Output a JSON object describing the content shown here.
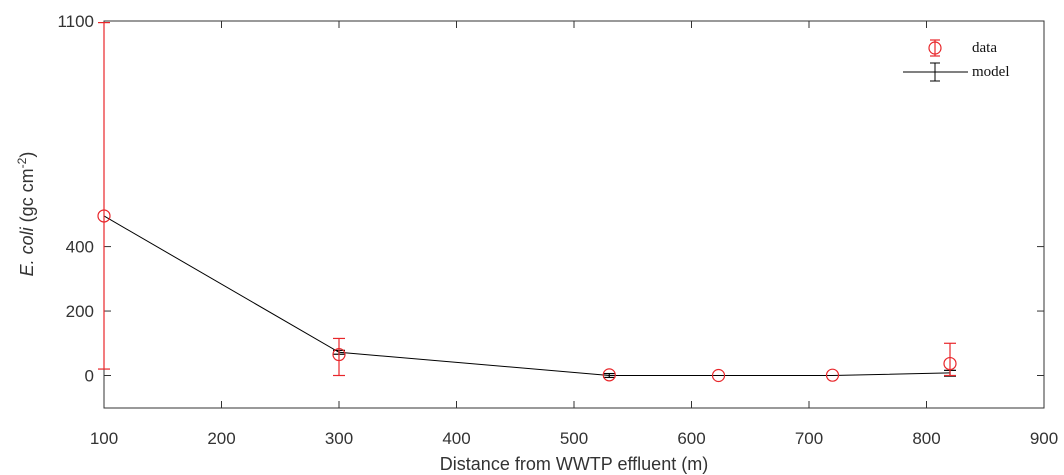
{
  "chart_data": {
    "type": "line",
    "xlabel": "Distance from WWTP effluent (m)",
    "ylabel_italic": "E. coli",
    "ylabel_rest": " (gc cm",
    "ylabel_sup": "-2",
    "ylabel_close": ")",
    "xlim": [
      100,
      900
    ],
    "ylim": [
      -100,
      1100
    ],
    "x_ticks": [
      100,
      200,
      300,
      400,
      500,
      600,
      700,
      800,
      900
    ],
    "y_ticks": [
      0,
      200,
      400,
      1100
    ],
    "legend": {
      "data_label": "data",
      "model_label": "model",
      "placement": "top-right"
    },
    "series": [
      {
        "name": "data",
        "style": "markers",
        "color": "#e8262a",
        "points": [
          {
            "x": 100,
            "y": 495,
            "err_low": 475,
            "err_high": 600
          },
          {
            "x": 300,
            "y": 65,
            "err_low": 65,
            "err_high": 50
          },
          {
            "x": 530,
            "y": 2,
            "err_low": 0,
            "err_high": 0
          },
          {
            "x": 623,
            "y": 0,
            "err_low": 0,
            "err_high": 0
          },
          {
            "x": 720,
            "y": 1,
            "err_low": 0,
            "err_high": 0
          },
          {
            "x": 820,
            "y": 37,
            "err_low": 37,
            "err_high": 63
          }
        ]
      },
      {
        "name": "model",
        "style": "line",
        "color": "#000000",
        "points": [
          {
            "x": 100,
            "y": 495,
            "err_low": 0,
            "err_high": 0
          },
          {
            "x": 300,
            "y": 72,
            "err_low": 6,
            "err_high": 6
          },
          {
            "x": 530,
            "y": 0,
            "err_low": 6,
            "err_high": 6
          },
          {
            "x": 623,
            "y": 0,
            "err_low": 0,
            "err_high": 0
          },
          {
            "x": 720,
            "y": 0,
            "err_low": 0,
            "err_high": 0
          },
          {
            "x": 820,
            "y": 8,
            "err_low": 10,
            "err_high": 8
          }
        ]
      }
    ],
    "grid": false
  }
}
